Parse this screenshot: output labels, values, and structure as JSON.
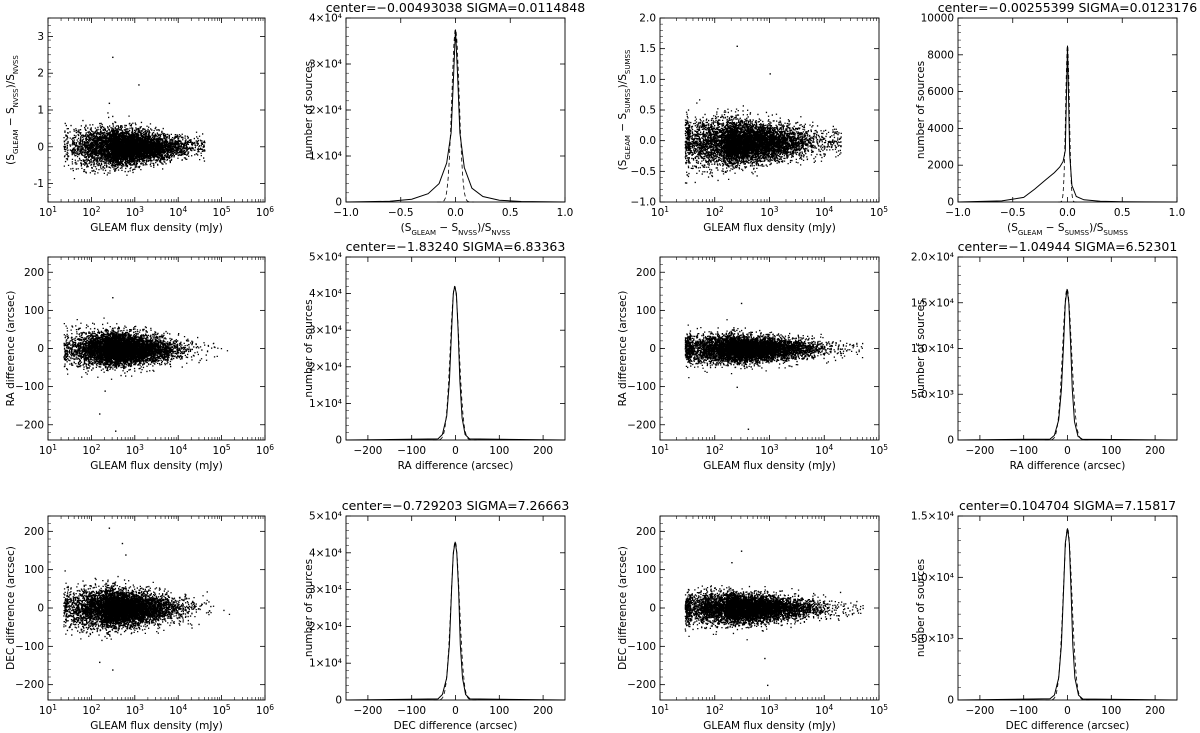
{
  "figure": {
    "chart_data": [
      {
        "type": "scatter",
        "panel": "p11",
        "xlabel": "GLEAM flux density (mJy)",
        "ylabel": "(S_GLEAM − S_NVSS)/S_NVSS",
        "xscale": "log",
        "xlim": [
          10,
          1000000
        ],
        "ylim": [
          -1.5,
          3.5
        ],
        "xticks": [
          10,
          100,
          1000,
          10000,
          100000,
          1000000
        ],
        "yticks": [
          -1,
          0,
          1,
          2,
          3
        ],
        "ytick_labels": [
          "-1",
          "0",
          "1",
          "2",
          "3"
        ],
        "cloud": {
          "log_x_range": [
            1.35,
            4.6
          ],
          "log_x_peak": 2.45,
          "center": 0.0,
          "spread": 0.2,
          "points": 7000
        },
        "outliers": [
          [
            300,
            2.45
          ],
          [
            1200,
            1.7
          ],
          [
            250,
            1.2
          ]
        ]
      },
      {
        "type": "histogram",
        "panel": "p12",
        "title": "center=−0.00493038   SIGMA=0.0114848",
        "xlabel": "(S_GLEAM − S_NVSS)/S_NVSS",
        "ylabel": "number of sources",
        "xlim": [
          -1.0,
          1.0
        ],
        "ylim": [
          0,
          40000
        ],
        "xticks": [
          -1.0,
          -0.5,
          0.0,
          0.5,
          1.0
        ],
        "xtick_labels": [
          "−1.0",
          "−0.5",
          "0.0",
          "0.5",
          "1.0"
        ],
        "yticks": [
          0,
          10000,
          20000,
          30000,
          40000
        ],
        "ytick_labels": [
          "0",
          "1×10⁴",
          "2×10⁴",
          "3×10⁴",
          "4×10⁴"
        ],
        "peak": 37500,
        "peak_x": 0.0,
        "profile": [
          [
            -0.6,
            150
          ],
          [
            -0.4,
            600
          ],
          [
            -0.25,
            1800
          ],
          [
            -0.15,
            4000
          ],
          [
            -0.08,
            8500
          ],
          [
            -0.04,
            15000
          ],
          [
            -0.02,
            26000
          ],
          [
            0.0,
            37500
          ],
          [
            0.02,
            27000
          ],
          [
            0.04,
            15000
          ],
          [
            0.08,
            7500
          ],
          [
            0.15,
            3000
          ],
          [
            0.25,
            1200
          ],
          [
            0.4,
            400
          ],
          [
            0.6,
            100
          ]
        ]
      },
      {
        "type": "scatter",
        "panel": "p13",
        "xlabel": "GLEAM flux density (mJy)",
        "ylabel": "(S_GLEAM − S_SUMSS)/S_SUMSS",
        "xscale": "log",
        "xlim": [
          10,
          100000
        ],
        "ylim": [
          -1.0,
          2.0
        ],
        "xticks": [
          10,
          100,
          1000,
          10000,
          100000
        ],
        "yticks": [
          -1.0,
          -0.5,
          0.0,
          0.5,
          1.0,
          1.5,
          2.0
        ],
        "ytick_labels": [
          "−1.0",
          "−0.5",
          "0.0",
          "0.5",
          "1.0",
          "1.5",
          "2.0"
        ],
        "cloud": {
          "log_x_range": [
            1.45,
            4.3
          ],
          "log_x_peak": 2.2,
          "center": -0.02,
          "spread": 0.15,
          "points": 7000
        },
        "outliers": [
          [
            250,
            1.55
          ],
          [
            1000,
            1.1
          ]
        ]
      },
      {
        "type": "histogram",
        "panel": "p14",
        "title": "center=−0.00255399   SIGMA=0.0123176",
        "xlabel": "(S_GLEAM − S_SUMSS)/S_SUMSS",
        "ylabel": "number of sources",
        "xlim": [
          -1.0,
          1.0
        ],
        "ylim": [
          0,
          10000
        ],
        "xticks": [
          -1.0,
          -0.5,
          0.0,
          0.5,
          1.0
        ],
        "xtick_labels": [
          "−1.0",
          "−0.5",
          "0.0",
          "0.5",
          "1.0"
        ],
        "yticks": [
          0,
          2000,
          4000,
          6000,
          8000,
          10000
        ],
        "ytick_labels": [
          "0",
          "2000",
          "4000",
          "6000",
          "8000",
          "10000"
        ],
        "peak": 8500,
        "peak_x": 0.0,
        "profile": [
          [
            -0.6,
            60
          ],
          [
            -0.4,
            250
          ],
          [
            -0.3,
            700
          ],
          [
            -0.2,
            1200
          ],
          [
            -0.12,
            1600
          ],
          [
            -0.07,
            1900
          ],
          [
            -0.04,
            2200
          ],
          [
            -0.02,
            2800
          ],
          [
            0.0,
            8500
          ],
          [
            0.02,
            2600
          ],
          [
            0.04,
            900
          ],
          [
            0.08,
            300
          ],
          [
            0.15,
            120
          ],
          [
            0.3,
            40
          ],
          [
            0.5,
            10
          ]
        ]
      },
      {
        "type": "scatter",
        "panel": "p21",
        "xlabel": "GLEAM flux density (mJy)",
        "ylabel": "RA difference (arcsec)",
        "xscale": "log",
        "xlim": [
          10,
          1000000
        ],
        "ylim": [
          -240,
          240
        ],
        "xticks": [
          10,
          100,
          1000,
          10000,
          100000,
          1000000
        ],
        "yticks": [
          -200,
          -100,
          0,
          100,
          200
        ],
        "ytick_labels": [
          "−200",
          "−100",
          "0",
          "100",
          "200"
        ],
        "cloud": {
          "log_x_range": [
            1.35,
            5.2
          ],
          "log_x_peak": 2.3,
          "center": 0,
          "spread": 18,
          "points": 7000
        },
        "outliers": [
          [
            300,
            135
          ],
          [
            150,
            -170
          ],
          [
            350,
            -215
          ],
          [
            200,
            -110
          ]
        ]
      },
      {
        "type": "histogram",
        "panel": "p22",
        "title": "center=−1.83240   SIGMA=6.83363",
        "xlabel": "RA difference (arcsec)",
        "ylabel": "number of sources",
        "xlim": [
          -250,
          250
        ],
        "ylim": [
          0,
          50000
        ],
        "xticks": [
          -200,
          -100,
          0,
          100,
          200
        ],
        "xtick_labels": [
          "−200",
          "−100",
          "0",
          "100",
          "200"
        ],
        "yticks": [
          0,
          10000,
          20000,
          30000,
          40000,
          50000
        ],
        "ytick_labels": [
          "0",
          "1×10⁴",
          "2×10⁴",
          "3×10⁴",
          "4×10⁴",
          "5×10⁴"
        ],
        "peak": 42000,
        "peak_x": -1.8,
        "profile": [
          [
            -40,
            300
          ],
          [
            -30,
            1500
          ],
          [
            -20,
            6500
          ],
          [
            -14,
            16000
          ],
          [
            -9,
            30000
          ],
          [
            -5,
            40000
          ],
          [
            -1.8,
            42000
          ],
          [
            2,
            40000
          ],
          [
            6,
            30000
          ],
          [
            10,
            16000
          ],
          [
            15,
            6000
          ],
          [
            22,
            1500
          ],
          [
            32,
            300
          ]
        ]
      },
      {
        "type": "scatter",
        "panel": "p23",
        "xlabel": "GLEAM flux density (mJy)",
        "ylabel": "RA difference (arcsec)",
        "xscale": "log",
        "xlim": [
          10,
          100000
        ],
        "ylim": [
          -240,
          240
        ],
        "xticks": [
          10,
          100,
          1000,
          10000,
          100000
        ],
        "yticks": [
          -200,
          -100,
          0,
          100,
          200
        ],
        "ytick_labels": [
          "−200",
          "−100",
          "0",
          "100",
          "200"
        ],
        "cloud": {
          "log_x_range": [
            1.45,
            4.7
          ],
          "log_x_peak": 2.2,
          "center": 0,
          "spread": 15,
          "points": 7000
        },
        "outliers": [
          [
            300,
            120
          ],
          [
            250,
            -100
          ],
          [
            400,
            -210
          ]
        ]
      },
      {
        "type": "histogram",
        "panel": "p24",
        "title": "center=−1.04944   SIGMA=6.52301",
        "xlabel": "RA difference (arcsec)",
        "ylabel": "number of sources",
        "xlim": [
          -250,
          250
        ],
        "ylim": [
          0,
          20000
        ],
        "xticks": [
          -200,
          -100,
          0,
          100,
          200
        ],
        "xtick_labels": [
          "−200",
          "−100",
          "0",
          "100",
          "200"
        ],
        "yticks": [
          0,
          5000,
          10000,
          15000,
          20000
        ],
        "ytick_labels": [
          "0",
          "5.0×10³",
          "1.0×10⁴",
          "1.5×10⁴",
          "2.0×10⁴"
        ],
        "peak": 16500,
        "peak_x": -1.0,
        "profile": [
          [
            -40,
            100
          ],
          [
            -30,
            500
          ],
          [
            -20,
            2200
          ],
          [
            -14,
            5500
          ],
          [
            -9,
            10500
          ],
          [
            -5,
            15000
          ],
          [
            -1,
            16500
          ],
          [
            3,
            15000
          ],
          [
            7,
            10500
          ],
          [
            11,
            5500
          ],
          [
            16,
            2000
          ],
          [
            24,
            400
          ],
          [
            34,
            80
          ]
        ]
      },
      {
        "type": "scatter",
        "panel": "p31",
        "xlabel": "GLEAM flux density (mJy)",
        "ylabel": "DEC difference (arcsec)",
        "xscale": "log",
        "xlim": [
          10,
          1000000
        ],
        "ylim": [
          -240,
          240
        ],
        "xticks": [
          10,
          100,
          1000,
          10000,
          100000,
          1000000
        ],
        "yticks": [
          -200,
          -100,
          0,
          100,
          200
        ],
        "ytick_labels": [
          "−200",
          "−100",
          "0",
          "100",
          "200"
        ],
        "cloud": {
          "log_x_range": [
            1.35,
            5.2
          ],
          "log_x_peak": 2.3,
          "center": 0,
          "spread": 20,
          "points": 7000
        },
        "outliers": [
          [
            500,
            170
          ],
          [
            600,
            140
          ],
          [
            250,
            210
          ],
          [
            300,
            -160
          ],
          [
            150,
            -140
          ]
        ]
      },
      {
        "type": "histogram",
        "panel": "p32",
        "title": "center=−0.729203   SIGMA=7.26663",
        "xlabel": "DEC difference (arcsec)",
        "ylabel": "number of sources",
        "xlim": [
          -250,
          250
        ],
        "ylim": [
          0,
          50000
        ],
        "xticks": [
          -200,
          -100,
          0,
          100,
          200
        ],
        "xtick_labels": [
          "−200",
          "−100",
          "0",
          "100",
          "200"
        ],
        "yticks": [
          0,
          10000,
          20000,
          30000,
          40000,
          50000
        ],
        "ytick_labels": [
          "0",
          "1×10⁴",
          "2×10⁴",
          "3×10⁴",
          "4×10⁴",
          "5×10⁴"
        ],
        "peak": 43000,
        "peak_x": -0.7,
        "profile": [
          [
            -40,
            300
          ],
          [
            -30,
            1500
          ],
          [
            -20,
            6000
          ],
          [
            -14,
            15000
          ],
          [
            -9,
            30000
          ],
          [
            -5,
            40000
          ],
          [
            -0.7,
            43000
          ],
          [
            3,
            40000
          ],
          [
            7,
            30000
          ],
          [
            11,
            15000
          ],
          [
            16,
            6000
          ],
          [
            23,
            1500
          ],
          [
            33,
            300
          ]
        ]
      },
      {
        "type": "scatter",
        "panel": "p33",
        "xlabel": "GLEAM flux density (mJy)",
        "ylabel": "DEC difference (arcsec)",
        "xscale": "log",
        "xlim": [
          10,
          100000
        ],
        "ylim": [
          -240,
          240
        ],
        "xticks": [
          10,
          100,
          1000,
          10000,
          100000
        ],
        "yticks": [
          -200,
          -100,
          0,
          100,
          200
        ],
        "ytick_labels": [
          "−200",
          "−100",
          "0",
          "100",
          "200"
        ],
        "cloud": {
          "log_x_range": [
            1.45,
            4.7
          ],
          "log_x_peak": 2.2,
          "center": 0,
          "spread": 16,
          "points": 7000
        },
        "outliers": [
          [
            300,
            150
          ],
          [
            800,
            -130
          ],
          [
            900,
            -200
          ],
          [
            200,
            120
          ]
        ]
      },
      {
        "type": "histogram",
        "panel": "p34",
        "title": "center=0.104704   SIGMA=7.15817",
        "xlabel": "DEC difference (arcsec)",
        "ylabel": "number of sources",
        "xlim": [
          -250,
          250
        ],
        "ylim": [
          0,
          15000
        ],
        "xticks": [
          -200,
          -100,
          0,
          100,
          200
        ],
        "xtick_labels": [
          "−200",
          "−100",
          "0",
          "100",
          "200"
        ],
        "yticks": [
          0,
          5000,
          10000,
          15000
        ],
        "ytick_labels": [
          "0",
          "5.0×10³",
          "1.0×10⁴",
          "1.5×10⁴"
        ],
        "peak": 14000,
        "peak_x": 0.1,
        "profile": [
          [
            -40,
            100
          ],
          [
            -30,
            400
          ],
          [
            -20,
            1800
          ],
          [
            -14,
            4500
          ],
          [
            -9,
            9000
          ],
          [
            -5,
            12800
          ],
          [
            0.1,
            14000
          ],
          [
            4,
            12800
          ],
          [
            8,
            9000
          ],
          [
            12,
            4500
          ],
          [
            17,
            1800
          ],
          [
            25,
            400
          ],
          [
            35,
            80
          ]
        ]
      }
    ]
  }
}
